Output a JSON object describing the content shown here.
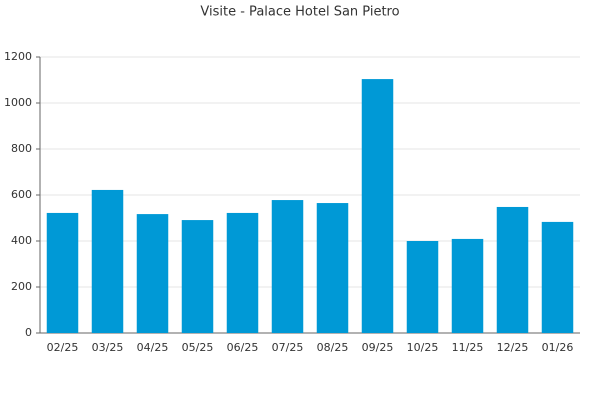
{
  "chart_data": {
    "type": "bar",
    "title": "Visite - Palace Hotel San Pietro",
    "categories": [
      "02/25",
      "03/25",
      "04/25",
      "05/25",
      "06/25",
      "07/25",
      "08/25",
      "09/25",
      "10/25",
      "11/25",
      "12/25",
      "01/26"
    ],
    "values": [
      522,
      622,
      517,
      491,
      522,
      578,
      565,
      1104,
      400,
      409,
      548,
      483
    ],
    "color": "#0099d6",
    "ylim": [
      0,
      1200
    ],
    "yticks": [
      0,
      200,
      400,
      600,
      800,
      1000,
      1200
    ],
    "grid": true
  }
}
